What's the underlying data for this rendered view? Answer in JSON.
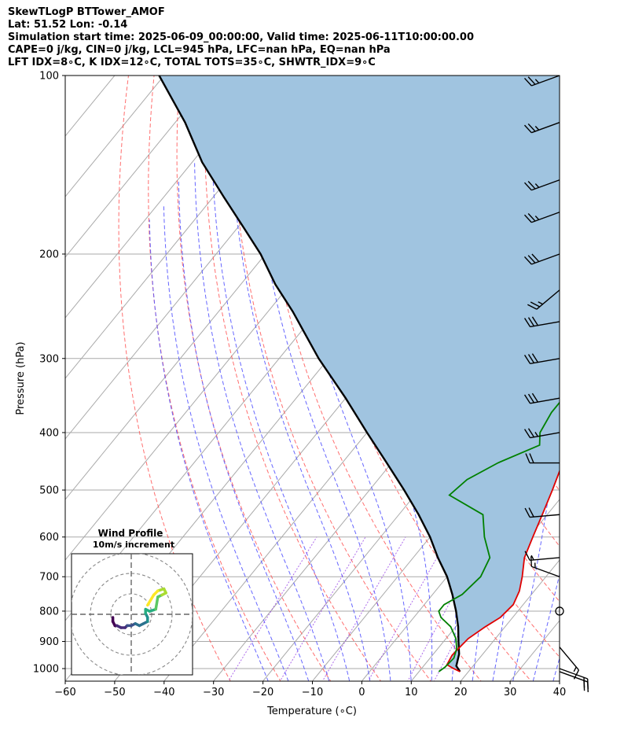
{
  "header": {
    "line1": "SkewTLogP BTTower_AMOF",
    "line2": "Lat: 51.52   Lon: -0.14",
    "line3": "Simulation start time: 2025-06-09_00:00:00, Valid time: 2025-06-11T10:00:00.00",
    "line4": "CAPE=0 j/kg, CIN=0 j/kg, LCL=945 hPa, LFC=nan hPa, EQ=nan hPa",
    "line5": "LFT IDX=8∘C, K IDX=12∘C, TOTAL TOTS=35∘C, SHWTR_IDX=9∘C"
  },
  "chart_data": [
    {
      "type": "line",
      "subtype": "skew-t log-p",
      "xlabel": "Temperature (∘C)",
      "ylabel": "Pressure (hPa)",
      "xlim": [
        -60,
        40
      ],
      "ylim": [
        1050,
        100
      ],
      "y_scale": "log",
      "x_ticks": [
        "−60",
        "−50",
        "−40",
        "−30",
        "−20",
        "−10",
        "0",
        "10",
        "20",
        "30",
        "40"
      ],
      "y_ticks": [
        "1000",
        "900",
        "800",
        "700",
        "600",
        "500",
        "400",
        "300",
        "200",
        "100"
      ],
      "grid": true,
      "series": [
        {
          "role": "temperature",
          "color": "#e00000",
          "points": [
            [
              18.3,
              1012
            ],
            [
              16.5,
              1000
            ],
            [
              14.5,
              985
            ],
            [
              14,
              950
            ],
            [
              14.2,
              920
            ],
            [
              14.5,
              890
            ],
            [
              16,
              850
            ],
            [
              17.5,
              820
            ],
            [
              18,
              780
            ],
            [
              17,
              740
            ],
            [
              15.2,
              700
            ],
            [
              12.5,
              650
            ],
            [
              10.8,
              600
            ],
            [
              9,
              550
            ],
            [
              7,
              500
            ],
            [
              4.6,
              450
            ],
            [
              2,
              400
            ],
            [
              -1.8,
              350
            ],
            [
              -5.5,
              300
            ],
            [
              -7.5,
              270
            ],
            [
              -8.5,
              250
            ],
            [
              -9.5,
              230
            ],
            [
              -9.8,
              210
            ],
            [
              -9.6,
              200
            ],
            [
              -9.4,
              190
            ],
            [
              -9,
              180
            ],
            [
              -8.6,
              170
            ],
            [
              -8,
              165
            ],
            [
              -5,
              150
            ],
            [
              -1,
              135
            ],
            [
              0.5,
              125
            ],
            [
              2,
              115
            ],
            [
              2.8,
              106
            ],
            [
              3.2,
              100
            ]
          ]
        },
        {
          "role": "dewpoint",
          "color": "#008000",
          "points": [
            [
              14,
              1012
            ],
            [
              14.5,
              995
            ],
            [
              14.8,
              960
            ],
            [
              13.8,
              925
            ],
            [
              12,
              890
            ],
            [
              9,
              850
            ],
            [
              5.5,
              820
            ],
            [
              4,
              800
            ],
            [
              4,
              780
            ],
            [
              6,
              750
            ],
            [
              6.8,
              700
            ],
            [
              5.5,
              650
            ],
            [
              1,
              600
            ],
            [
              -3,
              550
            ],
            [
              -13,
              510
            ],
            [
              -12,
              480
            ],
            [
              -8.5,
              450
            ],
            [
              -3,
              420
            ],
            [
              -5,
              400
            ],
            [
              -6,
              370
            ],
            [
              -6,
              340
            ],
            [
              -6.5,
              320
            ],
            [
              -8,
              300
            ],
            [
              -9,
              270
            ],
            [
              -9,
              250
            ],
            [
              -9,
              225
            ],
            [
              -9,
              200
            ],
            [
              -10,
              185
            ],
            [
              -12,
              175
            ],
            [
              -14,
              165
            ],
            [
              -16,
              150
            ],
            [
              -16,
              140
            ],
            [
              -10,
              120
            ],
            [
              -5,
              106
            ],
            [
              -3,
              100
            ]
          ]
        },
        {
          "role": "parcel",
          "color": "#000000",
          "points": [
            [
              18.3,
              1012
            ],
            [
              16.6,
              990
            ],
            [
              15.2,
              945
            ],
            [
              13,
              900
            ],
            [
              10.5,
              850
            ],
            [
              7.5,
              800
            ],
            [
              4,
              750
            ],
            [
              0,
              700
            ],
            [
              -5,
              650
            ],
            [
              -10,
              600
            ],
            [
              -16,
              550
            ],
            [
              -23,
              500
            ],
            [
              -31,
              450
            ],
            [
              -40,
              400
            ],
            [
              -50,
              350
            ],
            [
              -62,
              300
            ],
            [
              -75,
              250
            ],
            [
              -83,
              225
            ],
            [
              -91,
              200
            ],
            [
              -99,
              180
            ],
            [
              -108,
              160
            ],
            [
              -118,
              140
            ],
            [
              -128,
              120
            ],
            [
              -141,
              100
            ]
          ]
        }
      ],
      "shaded_region": {
        "between": [
          "parcel",
          "temperature"
        ],
        "color": "#a0c4e0"
      },
      "wind_barbs": [
        {
          "p": 100,
          "speed_kt": 25,
          "dir": 250
        },
        {
          "p": 120,
          "speed_kt": 25,
          "dir": 250
        },
        {
          "p": 150,
          "speed_kt": 25,
          "dir": 250
        },
        {
          "p": 170,
          "speed_kt": 25,
          "dir": 250
        },
        {
          "p": 200,
          "speed_kt": 30,
          "dir": 250
        },
        {
          "p": 230,
          "speed_kt": 25,
          "dir": 230
        },
        {
          "p": 260,
          "speed_kt": 30,
          "dir": 260
        },
        {
          "p": 300,
          "speed_kt": 30,
          "dir": 260
        },
        {
          "p": 350,
          "speed_kt": 30,
          "dir": 260
        },
        {
          "p": 400,
          "speed_kt": 25,
          "dir": 260
        },
        {
          "p": 450,
          "speed_kt": 20,
          "dir": 270
        },
        {
          "p": 550,
          "speed_kt": 20,
          "dir": 265
        },
        {
          "p": 650,
          "speed_kt": 15,
          "dir": 265
        },
        {
          "p": 700,
          "speed_kt": 15,
          "dir": 290
        },
        {
          "p": 800,
          "speed_kt": 0,
          "dir": 0
        },
        {
          "p": 920,
          "speed_kt": 15,
          "dir": 140
        },
        {
          "p": 1000,
          "speed_kt": 20,
          "dir": 110
        },
        {
          "p": 1012,
          "speed_kt": 20,
          "dir": 110
        }
      ],
      "inset": {
        "title": "Wind Profile",
        "subtitle": "10m/s increment",
        "rings_ms": [
          10,
          20,
          30
        ],
        "hodograph": [
          [
            -9,
            10
          ],
          [
            -9,
            8
          ],
          [
            -8,
            6
          ],
          [
            -7,
            6
          ],
          [
            -5,
            5
          ],
          [
            -3,
            5
          ],
          [
            -2,
            6
          ],
          [
            0,
            6
          ],
          [
            2,
            7
          ],
          [
            4,
            6
          ],
          [
            6,
            7
          ],
          [
            8,
            8
          ],
          [
            8,
            10
          ],
          [
            7,
            12
          ],
          [
            7,
            14
          ],
          [
            9,
            13
          ],
          [
            12,
            14
          ],
          [
            13,
            20
          ],
          [
            15,
            21
          ],
          [
            17,
            22
          ],
          [
            16,
            24
          ],
          [
            13,
            23
          ],
          [
            11,
            21
          ],
          [
            8,
            16
          ]
        ],
        "colormap": "viridis"
      }
    }
  ]
}
